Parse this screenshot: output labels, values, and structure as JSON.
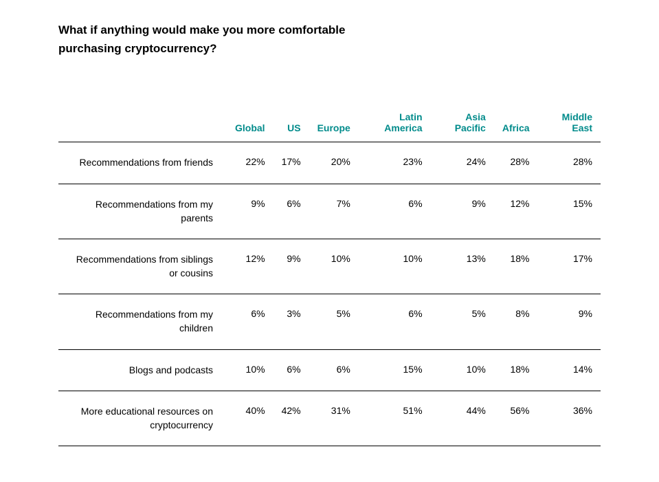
{
  "title": "What if anything would make you more comfortable purchasing cryptocurrency?",
  "table": {
    "header_color": "#008b8b",
    "border_color": "#000000",
    "text_color": "#000000",
    "background_color": "#ffffff",
    "title_fontsize": 17,
    "header_fontsize": 14,
    "cell_fontsize": 14,
    "columns": [
      "Global",
      "US",
      "Europe",
      "Latin America",
      "Asia Pacific",
      "Africa",
      "Middle East"
    ],
    "rows": [
      {
        "label": "Recommendations from friends",
        "values": [
          "22%",
          "17%",
          "20%",
          "23%",
          "24%",
          "28%",
          "28%"
        ]
      },
      {
        "label": "Recommendations from my parents",
        "values": [
          "9%",
          "6%",
          "7%",
          "6%",
          "9%",
          "12%",
          "15%"
        ]
      },
      {
        "label": "Recommendations from siblings or cousins",
        "values": [
          "12%",
          "9%",
          "10%",
          "10%",
          "13%",
          "18%",
          "17%"
        ]
      },
      {
        "label": "Recommendations from my children",
        "values": [
          "6%",
          "3%",
          "5%",
          "6%",
          "5%",
          "8%",
          "9%"
        ]
      },
      {
        "label": "Blogs and podcasts",
        "values": [
          "10%",
          "6%",
          "6%",
          "15%",
          "10%",
          "18%",
          "14%"
        ]
      },
      {
        "label": "More educational resources on cryptocurrency",
        "values": [
          "40%",
          "42%",
          "31%",
          "51%",
          "44%",
          "56%",
          "36%"
        ]
      }
    ]
  }
}
